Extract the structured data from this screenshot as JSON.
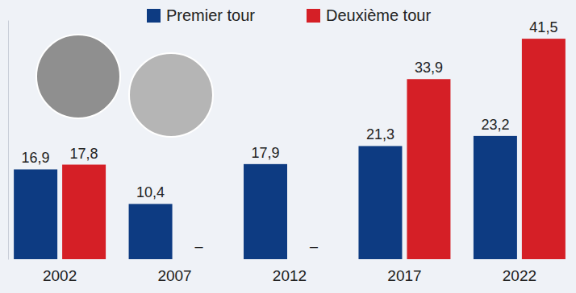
{
  "chart_data": {
    "type": "bar",
    "categories": [
      "2002",
      "2007",
      "2012",
      "2017",
      "2022"
    ],
    "series": [
      {
        "name": "Premier tour",
        "color": "#0d3b82",
        "values": [
          16.9,
          10.4,
          17.9,
          21.3,
          23.2
        ],
        "value_labels": [
          "16,9",
          "10,4",
          "17,9",
          "21,3",
          "23,2"
        ]
      },
      {
        "name": "Deuxième tour",
        "color": "#d51f26",
        "values": [
          17.8,
          null,
          null,
          33.9,
          41.5
        ],
        "value_labels": [
          "17,8",
          "–",
          "–",
          "33,9",
          "41,5"
        ]
      }
    ],
    "ylim": [
      0,
      45
    ],
    "yticks": [],
    "grid": false,
    "legend": "top",
    "data_labels": true,
    "tick_labels": "x"
  }
}
